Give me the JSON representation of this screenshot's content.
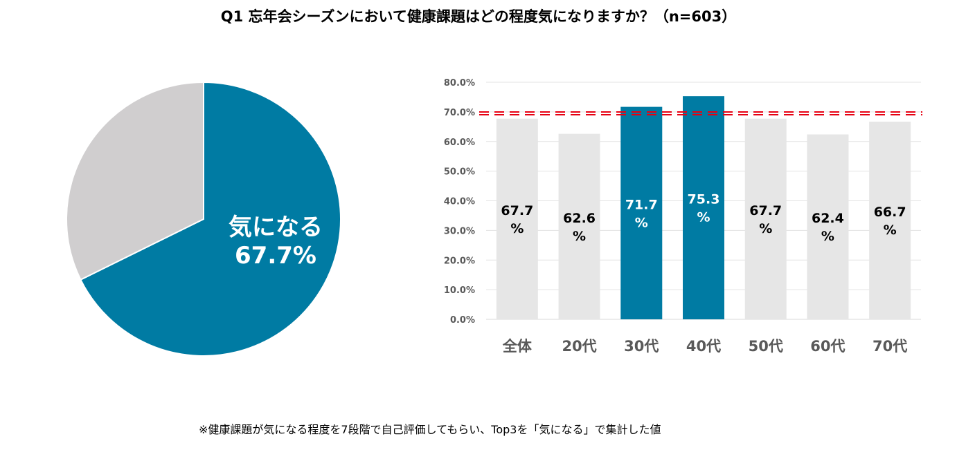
{
  "title": "Q1 忘年会シーズンにおいて健康課題はどの程度気になりますか？（n=603）",
  "footnote": "※健康課題が気になる程度を7段階で自己評価してもらい、Top3を「気になる」で集計した値",
  "colors": {
    "highlight": "#007ba3",
    "muted": "#e6e6e6",
    "pie_rest": "#d0cecf",
    "reference_line": "#e60012",
    "axis_text": "#595959"
  },
  "chart_data": [
    {
      "type": "pie",
      "slices": [
        {
          "label": "気になる",
          "value": 67.7,
          "value_label": "67.7%",
          "color": "#007ba3"
        },
        {
          "label": "",
          "value": 32.3,
          "color": "#d0cecf"
        }
      ]
    },
    {
      "type": "bar",
      "categories": [
        "全体",
        "20代",
        "30代",
        "40代",
        "50代",
        "60代",
        "70代"
      ],
      "values": [
        67.7,
        62.6,
        71.7,
        75.3,
        67.7,
        62.4,
        66.7
      ],
      "data_labels": [
        [
          "67.7",
          "%"
        ],
        [
          "62.6",
          "%"
        ],
        [
          "71.7",
          "%"
        ],
        [
          "75.3",
          "%"
        ],
        [
          "67.7",
          "%"
        ],
        [
          "62.4",
          "%"
        ],
        [
          "66.7",
          "%"
        ]
      ],
      "highlighted": [
        false,
        false,
        true,
        true,
        false,
        false,
        false
      ],
      "y_ticks": [
        "0.0%",
        "10.0%",
        "20.0%",
        "30.0%",
        "40.0%",
        "50.0%",
        "60.0%",
        "70.0%",
        "80.0%"
      ],
      "ylim": [
        0,
        80
      ],
      "reference_line": 69.5,
      "grid": true
    }
  ]
}
